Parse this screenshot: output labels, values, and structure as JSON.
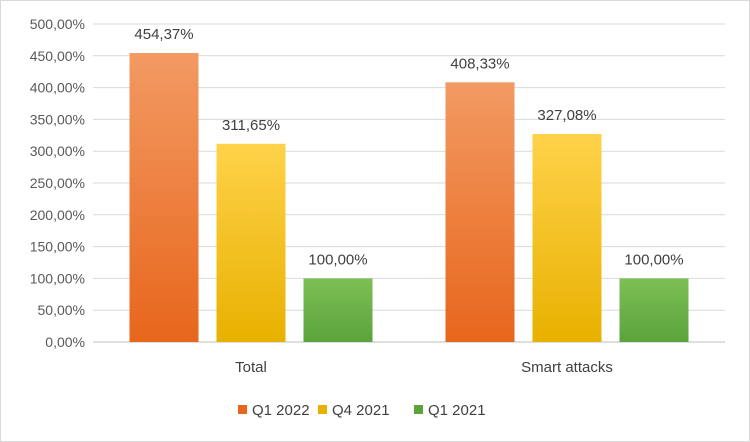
{
  "chart_data": {
    "type": "bar",
    "title": "",
    "xlabel": "",
    "ylabel": "",
    "categories": [
      "Total",
      "Smart attacks"
    ],
    "series": [
      {
        "name": "Q1 2022",
        "values": [
          454.37,
          408.33
        ],
        "labels": [
          "454,37%",
          "408,33%"
        ],
        "color_top": "#f29a63",
        "color_bottom": "#e8661c"
      },
      {
        "name": "Q4 2021",
        "values": [
          311.65,
          327.08
        ],
        "labels": [
          "311,65%",
          "327,08%"
        ],
        "color_top": "#ffd24a",
        "color_bottom": "#e8b100"
      },
      {
        "name": "Q1 2021",
        "values": [
          100.0,
          100.0
        ],
        "labels": [
          "100,00%",
          "100,00%"
        ],
        "color_top": "#7dbf55",
        "color_bottom": "#5ba43a"
      }
    ],
    "ylim": [
      0,
      500
    ],
    "yticks": [
      0,
      50,
      100,
      150,
      200,
      250,
      300,
      350,
      400,
      450,
      500
    ],
    "ytick_labels": [
      "0,00%",
      "50,00%",
      "100,00%",
      "150,00%",
      "200,00%",
      "250,00%",
      "300,00%",
      "350,00%",
      "400,00%",
      "450,00%",
      "500,00%"
    ],
    "grid": true,
    "legend_position": "bottom"
  }
}
